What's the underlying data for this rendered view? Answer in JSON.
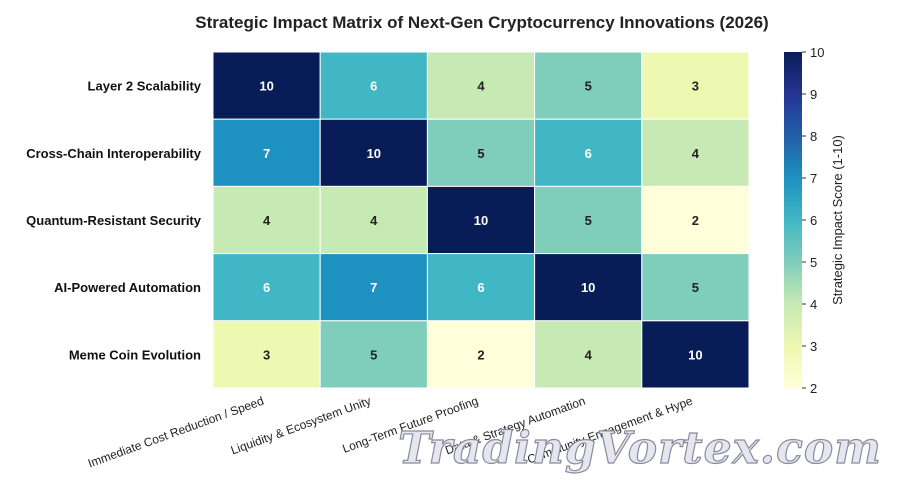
{
  "chart_data": {
    "type": "heatmap",
    "title": "Strategic Impact Matrix of Next-Gen Cryptocurrency Innovations (2026)",
    "rows": [
      "Layer 2 Scalability",
      "Cross-Chain Interoperability",
      "Quantum-Resistant Security",
      "AI-Powered Automation",
      "Meme Coin Evolution"
    ],
    "columns": [
      "Immediate Cost Reduction / Speed",
      "Liquidity & Ecosystem Unity",
      "Long-Term Future Proofing",
      "Data & Strategy Automation",
      "Community Engagement & Hype"
    ],
    "values": [
      [
        10,
        6,
        4,
        5,
        3
      ],
      [
        7,
        10,
        5,
        6,
        4
      ],
      [
        4,
        4,
        10,
        5,
        2
      ],
      [
        6,
        7,
        6,
        10,
        5
      ],
      [
        3,
        5,
        2,
        4,
        10
      ]
    ],
    "colorbar": {
      "label": "Strategic Impact Score (1-10)",
      "min": 2,
      "max": 10,
      "ticks": [
        2,
        3,
        4,
        5,
        6,
        7,
        8,
        9,
        10
      ]
    },
    "colormap": "YlGnBu",
    "colormap_stops": [
      "#ffffd9",
      "#edf8b1",
      "#c7e9b4",
      "#7fcdbb",
      "#41b6c4",
      "#1d91c0",
      "#225ea8",
      "#253494",
      "#081d58"
    ]
  },
  "watermark": "TradingVortex.com"
}
